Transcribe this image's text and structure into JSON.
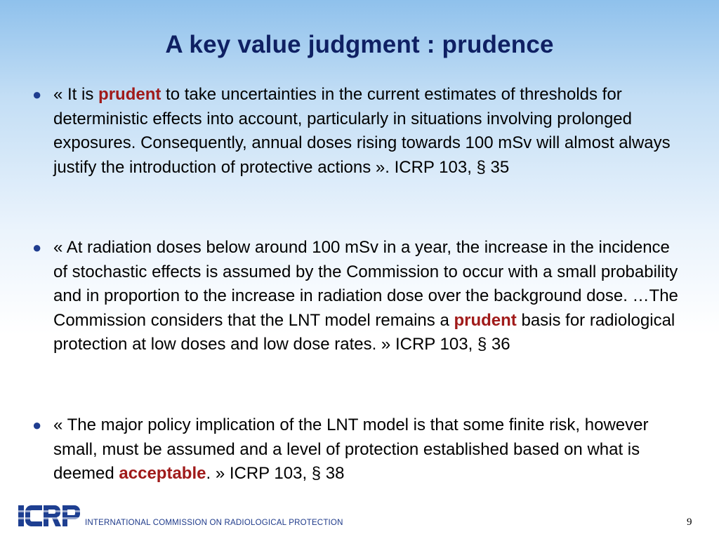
{
  "title": "A key value judgment : prudence",
  "bullets": [
    {
      "before": "« It is ",
      "emphasis": "prudent",
      "after": " to take uncertainties in the current estimates of thresholds for deterministic effects into account, particularly in situations involving prolonged exposures. Consequently, annual doses rising towards 100 mSv will almost always justify the introduction of protective actions ». ICRP 103,  §  35"
    },
    {
      "before": "«  At radiation doses below around 100 mSv in a year, the increase in the incidence of stochastic effects is assumed by the Commission to occur with a small probability and in proportion to the increase in radiation dose over the background dose. …The Commission considers that the LNT model remains a ",
      "emphasis": "prudent",
      "after": " basis for radiological protection at low doses and low dose rates. » ICRP 103,  §  36"
    },
    {
      "before": "« The major policy implication of the LNT model is that some finite risk, however small, must be assumed and a level of protection established based on what is deemed ",
      "emphasis": "acceptable",
      "after": ". » ICRP 103,  §  38"
    }
  ],
  "footer": {
    "logo_text": "ICRP",
    "organization": "INTERNATIONAL COMMISSION ON RADIOLOGICAL PROTECTION",
    "page_number": "9"
  },
  "colors": {
    "title": "#0f2063",
    "emphasis": "#a01a1a",
    "bullet": "#1f3d8f",
    "logo": "#1e3f91",
    "background_top": "#8fc1ec"
  }
}
